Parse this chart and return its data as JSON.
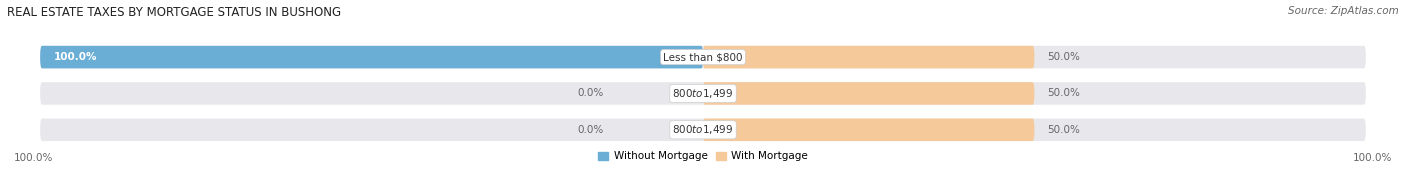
{
  "title": "REAL ESTATE TAXES BY MORTGAGE STATUS IN BUSHONG",
  "source": "Source: ZipAtlas.com",
  "categories": [
    "Less than $800",
    "$800 to $1,499",
    "$800 to $1,499"
  ],
  "without_mortgage": [
    100.0,
    0.0,
    0.0
  ],
  "with_mortgage": [
    50.0,
    50.0,
    50.0
  ],
  "color_without": "#6aaed6",
  "color_with": "#f5c99a",
  "bg_bar": "#e8e8ec",
  "bar_height": 0.62,
  "figsize": [
    14.06,
    1.96
  ],
  "dpi": 100,
  "legend_labels": [
    "Without Mortgage",
    "With Mortgage"
  ],
  "left_axis_label": "100.0%",
  "right_axis_label": "100.0%",
  "title_fontsize": 8.5,
  "source_fontsize": 7.5,
  "label_fontsize": 7.5,
  "cat_fontsize": 7.5
}
